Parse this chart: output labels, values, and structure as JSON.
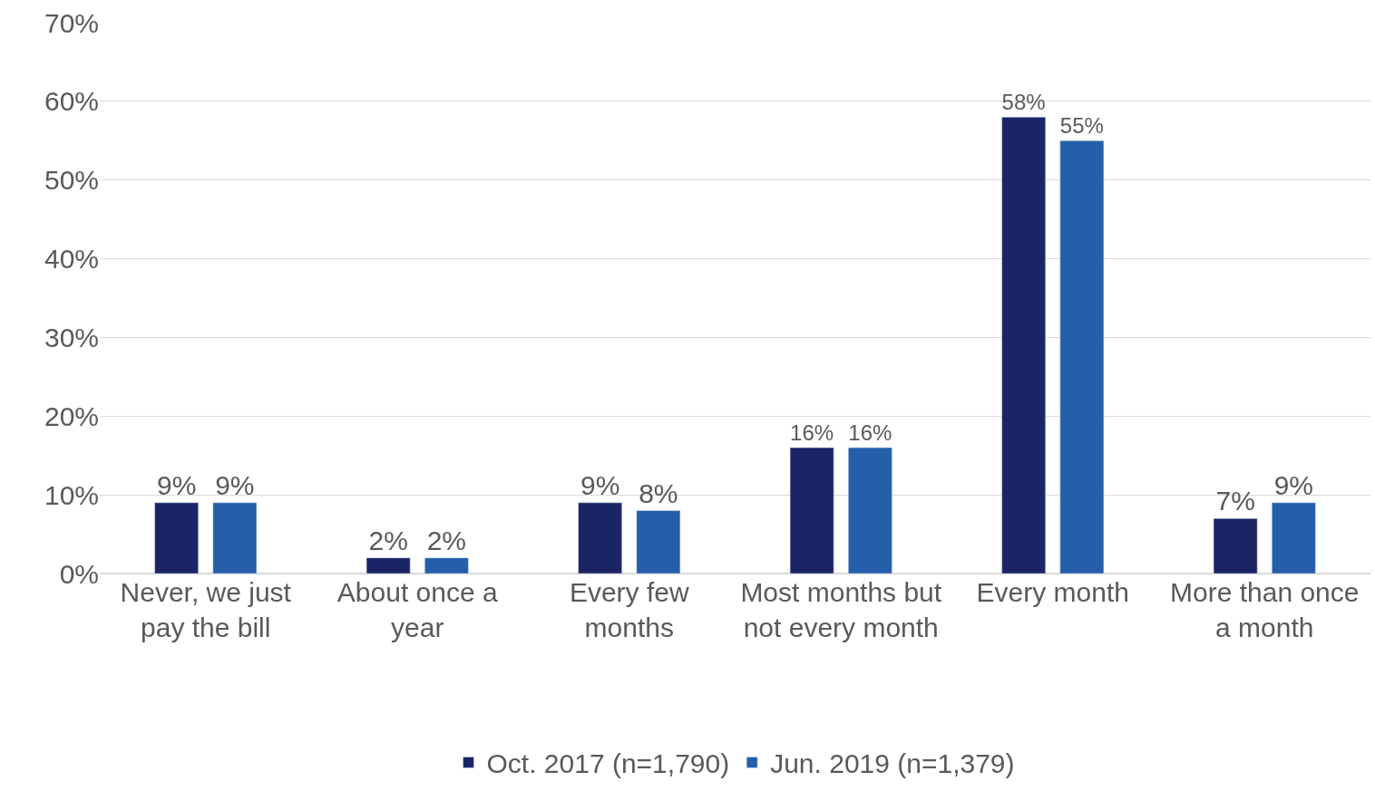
{
  "chart_data": {
    "type": "bar",
    "categories": [
      "Never, we just pay the bill",
      "About once a year",
      "Every few months",
      "Most months but not every month",
      "Every month",
      "More than once a month"
    ],
    "series": [
      {
        "name": "Oct. 2017 (n=1,790)",
        "color": "#1b2566",
        "values": [
          9,
          2,
          9,
          16,
          58,
          7
        ],
        "value_labels": [
          "9%",
          "2%",
          "9%",
          "16%",
          "58%",
          "7%"
        ]
      },
      {
        "name": "Jun. 2019 (n=1,379)",
        "color": "#255ea9",
        "values": [
          9,
          2,
          8,
          16,
          55,
          9
        ],
        "value_labels": [
          "9%",
          "2%",
          "8%",
          "16%",
          "55%",
          "9%"
        ]
      }
    ],
    "ylim": [
      0,
      70
    ],
    "yticks": [
      {
        "value": 0,
        "label": "0%"
      },
      {
        "value": 10,
        "label": "10%"
      },
      {
        "value": 20,
        "label": "20%"
      },
      {
        "value": 30,
        "label": "30%"
      },
      {
        "value": 40,
        "label": "40%"
      },
      {
        "value": 50,
        "label": "50%"
      },
      {
        "value": 60,
        "label": "60%"
      },
      {
        "value": 70,
        "label": "70%"
      }
    ],
    "grid": "y",
    "legend": "bottom"
  }
}
